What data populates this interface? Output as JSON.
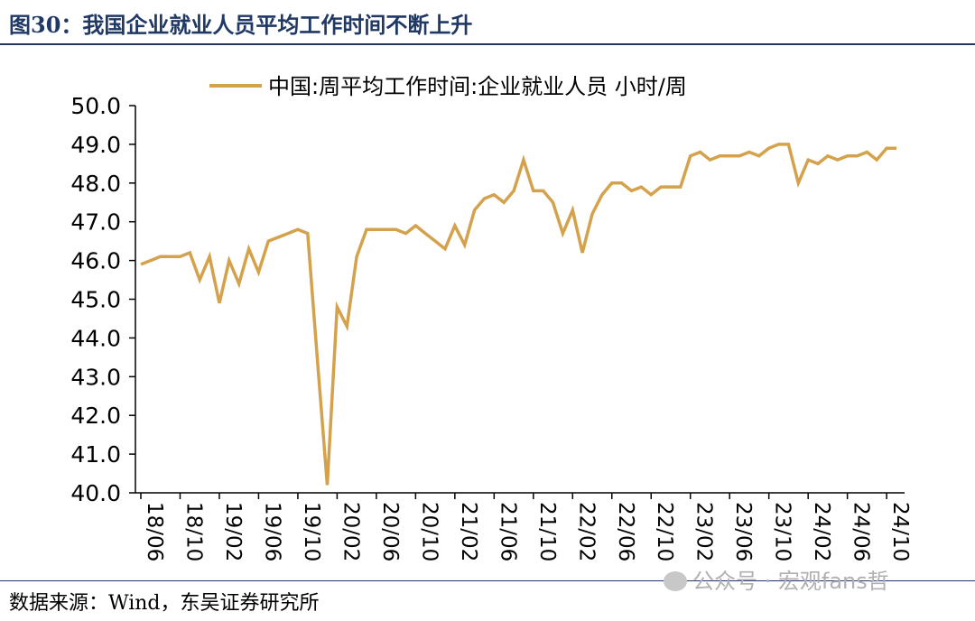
{
  "figure": {
    "title": "图30：我国企业就业人员平均工作时间不断上升",
    "source": "数据来源：Wind，东吴证券研究所",
    "watermark": "公众号 · 宏观fans哲"
  },
  "chart_data": {
    "type": "line",
    "title": "",
    "xlabel": "",
    "ylabel": "",
    "ylim": [
      40.0,
      50.0
    ],
    "y_ticks": [
      "40.0",
      "41.0",
      "42.0",
      "43.0",
      "44.0",
      "45.0",
      "46.0",
      "47.0",
      "48.0",
      "49.0",
      "50.0"
    ],
    "x_tick_labels": [
      "18/06",
      "18/10",
      "19/02",
      "19/06",
      "19/10",
      "20/02",
      "20/06",
      "20/10",
      "21/02",
      "21/06",
      "21/10",
      "22/02",
      "22/06",
      "22/10",
      "23/02",
      "23/06",
      "23/10",
      "24/02",
      "24/06",
      "24/10"
    ],
    "legend_position": "top-center",
    "grid": false,
    "colors": {
      "series": "#D4A24C",
      "axis": "#000000"
    },
    "series": [
      {
        "name": "中国:周平均工作时间:企业就业人员 小时/周",
        "x": [
          "18/06",
          "18/07",
          "18/08",
          "18/09",
          "18/10",
          "18/11",
          "18/12",
          "19/01",
          "19/02",
          "19/03",
          "19/04",
          "19/05",
          "19/06",
          "19/07",
          "19/08",
          "19/09",
          "19/10",
          "19/11",
          "19/12",
          "20/01",
          "20/02",
          "20/03",
          "20/04",
          "20/05",
          "20/06",
          "20/07",
          "20/08",
          "20/09",
          "20/10",
          "20/11",
          "20/12",
          "21/01",
          "21/02",
          "21/03",
          "21/04",
          "21/05",
          "21/06",
          "21/07",
          "21/08",
          "21/09",
          "21/10",
          "21/11",
          "21/12",
          "22/01",
          "22/02",
          "22/03",
          "22/04",
          "22/05",
          "22/06",
          "22/07",
          "22/08",
          "22/09",
          "22/10",
          "22/11",
          "22/12",
          "23/01",
          "23/02",
          "23/03",
          "23/04",
          "23/05",
          "23/06",
          "23/07",
          "23/08",
          "23/09",
          "23/10",
          "23/11",
          "23/12",
          "24/01",
          "24/02",
          "24/03",
          "24/04",
          "24/05",
          "24/06",
          "24/07",
          "24/08",
          "24/09",
          "24/10",
          "24/11"
        ],
        "values": [
          45.9,
          46.0,
          46.1,
          46.1,
          46.1,
          46.2,
          45.5,
          46.1,
          44.9,
          46.0,
          45.4,
          46.3,
          45.7,
          46.5,
          46.6,
          46.7,
          46.8,
          46.7,
          43.4,
          40.2,
          44.8,
          44.3,
          46.1,
          46.8,
          46.8,
          46.8,
          46.8,
          46.7,
          46.9,
          46.7,
          46.5,
          46.3,
          46.9,
          46.4,
          47.3,
          47.6,
          47.7,
          47.5,
          47.8,
          48.6,
          47.8,
          47.8,
          47.5,
          46.7,
          47.3,
          46.2,
          47.2,
          47.7,
          48.0,
          48.0,
          47.8,
          47.9,
          47.7,
          47.9,
          47.9,
          47.9,
          48.7,
          48.8,
          48.6,
          48.7,
          48.7,
          48.7,
          48.8,
          48.7,
          48.9,
          49.0,
          49.0,
          48.0,
          48.6,
          48.5,
          48.7,
          48.6,
          48.7,
          48.7,
          48.8,
          48.6,
          48.9,
          48.9
        ]
      }
    ]
  }
}
